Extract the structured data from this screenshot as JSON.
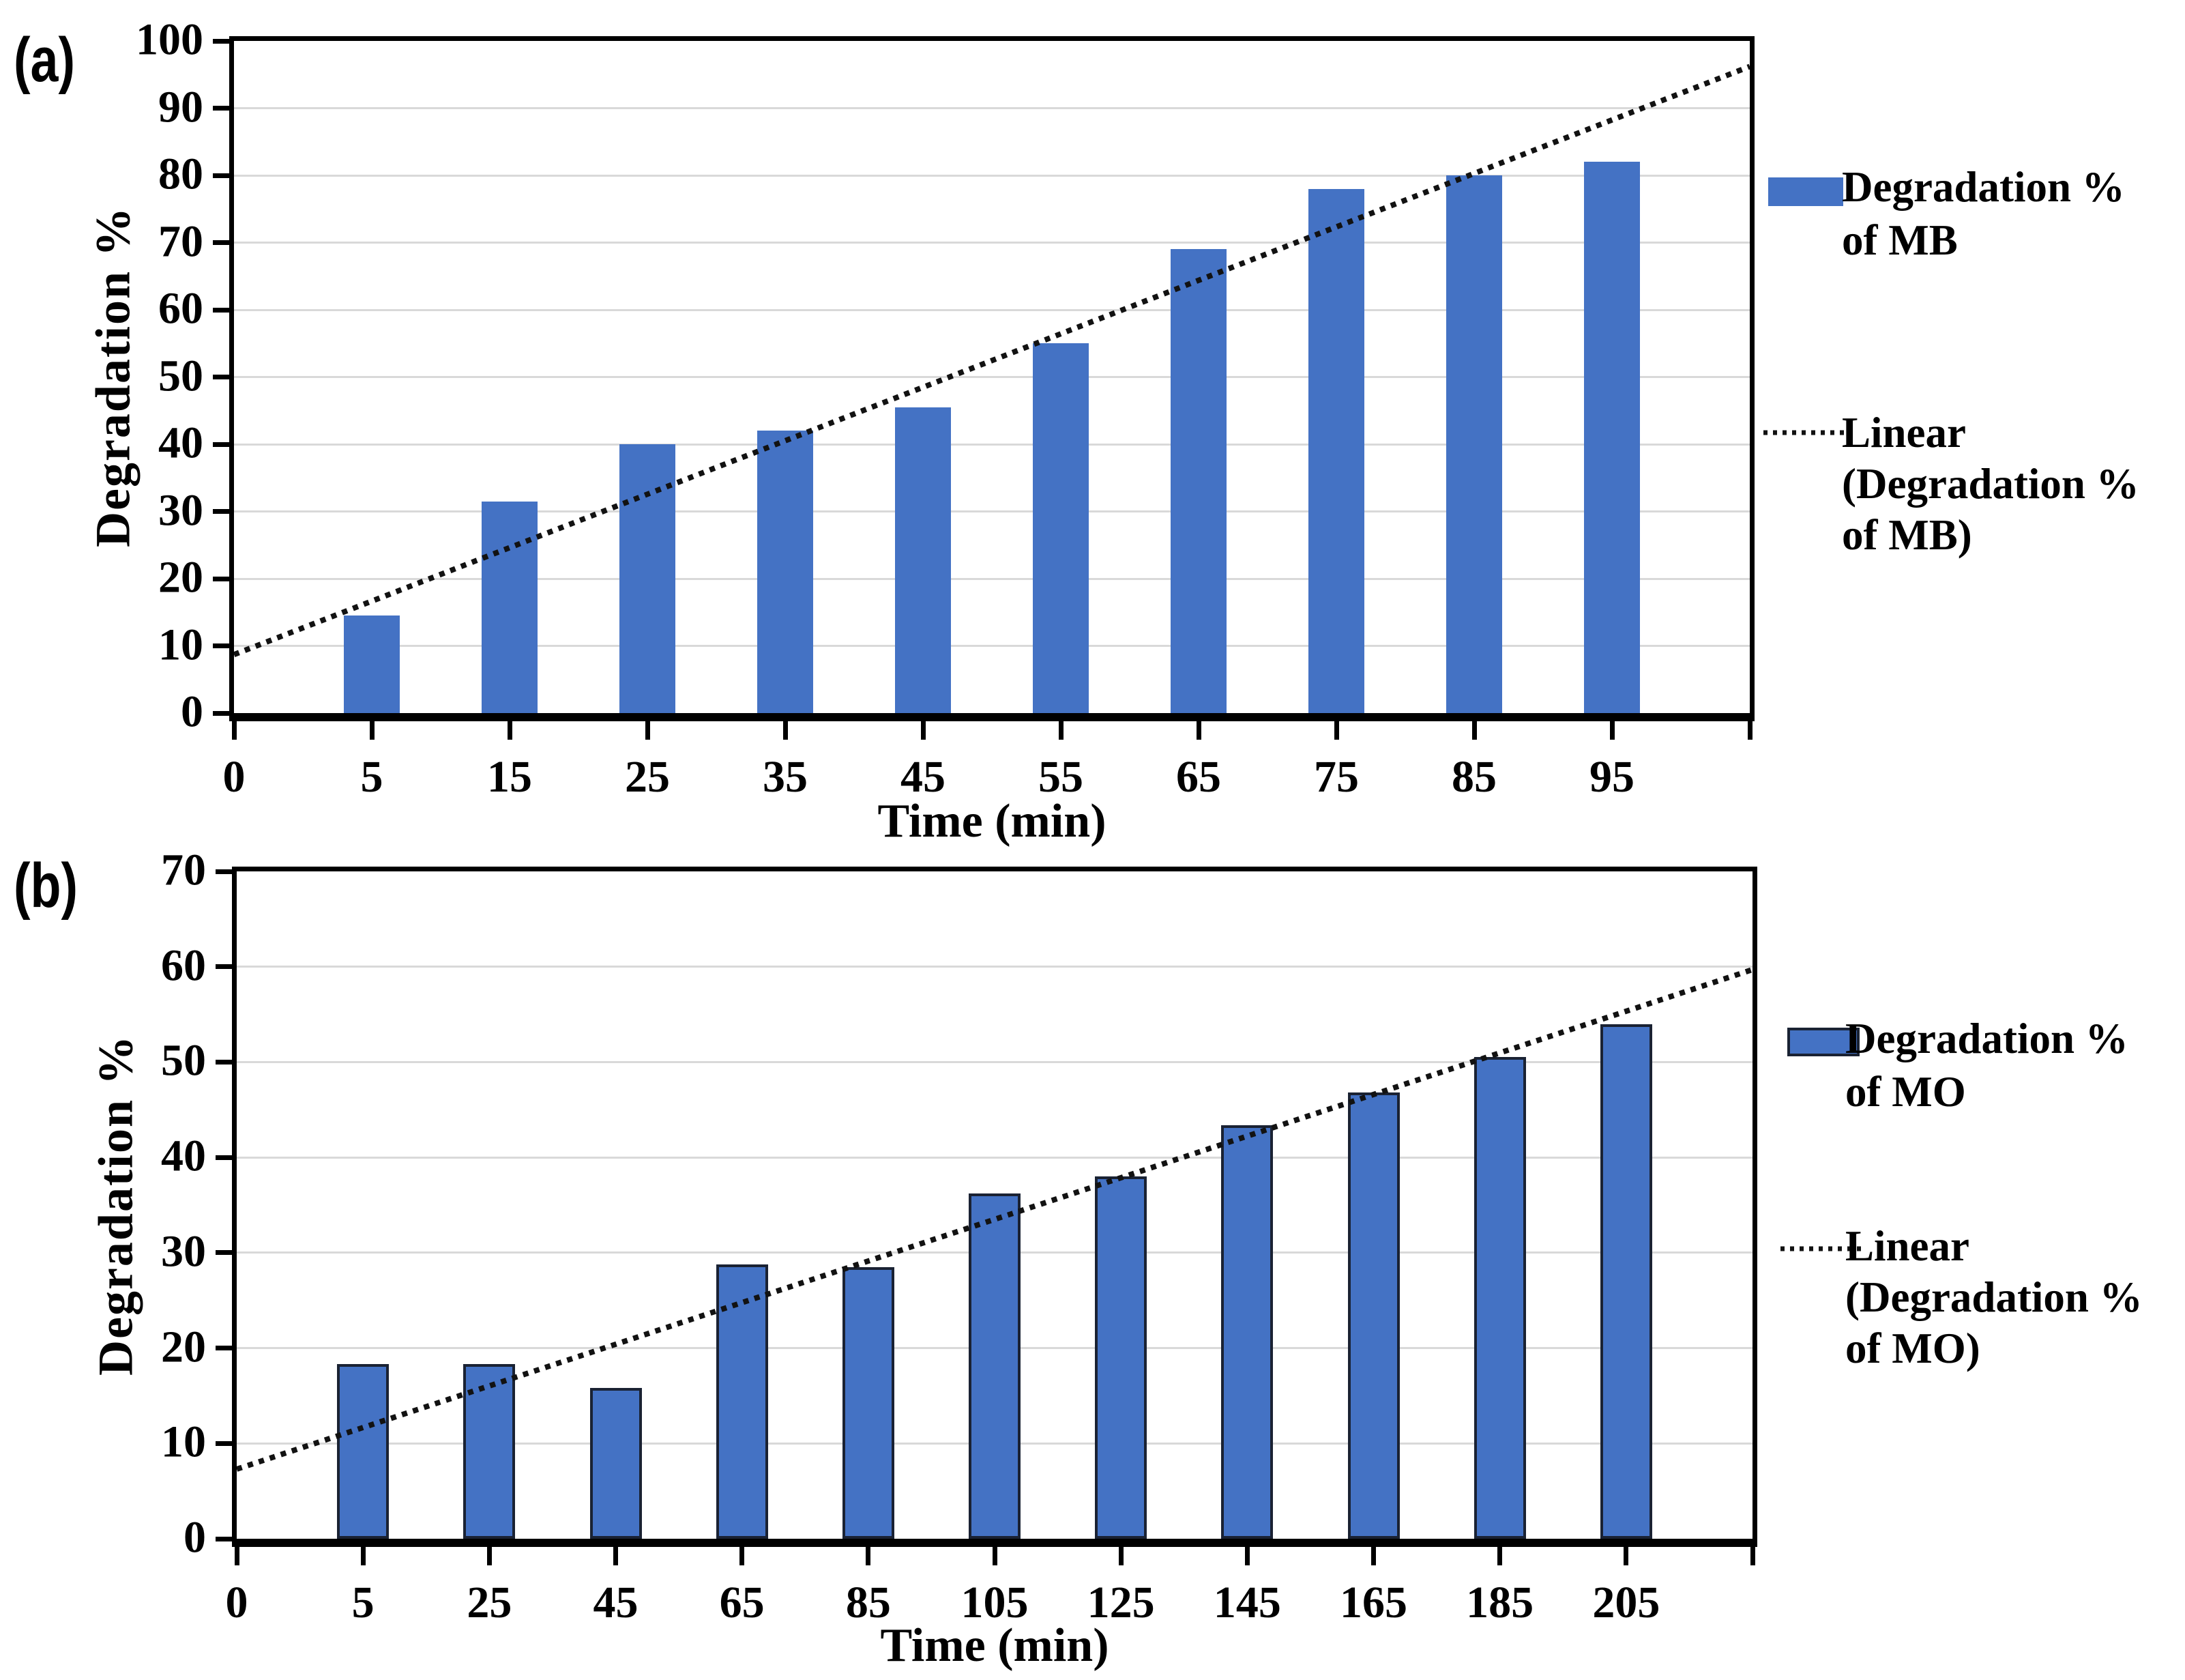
{
  "figure": {
    "panels": [
      {
        "id": "a",
        "label": "(a)"
      },
      {
        "id": "b",
        "label": "(b)"
      }
    ]
  },
  "chart_data": [
    {
      "type": "bar",
      "panel": "(a)",
      "categories": [
        "0",
        "5",
        "15",
        "25",
        "35",
        "45",
        "55",
        "65",
        "75",
        "85",
        "95"
      ],
      "values": [
        null,
        14.5,
        31.5,
        40,
        42,
        45.5,
        55,
        69,
        78,
        80,
        82
      ],
      "series_name": "Degradation % of MB",
      "xlabel": "Time (min)",
      "ylabel": "Degradation  %",
      "ylim": [
        0,
        100
      ],
      "yticks": [
        0,
        10,
        20,
        30,
        40,
        50,
        60,
        70,
        80,
        90,
        100
      ],
      "grid": true,
      "legend_position": "right",
      "bar_color": "#4472C4",
      "bar_border_color": null,
      "trendline": {
        "label": "Linear (Degradation % of MB)",
        "start_value": 8.7,
        "end_value": 96.2
      },
      "legend": [
        {
          "swatch": "bar",
          "lines": [
            "Degradation %",
            "of MB"
          ]
        },
        {
          "swatch": "dotted",
          "lines": [
            "Linear",
            "(Degradation %",
            "of MB)"
          ]
        }
      ]
    },
    {
      "type": "bar",
      "panel": "(b)",
      "categories": [
        "0",
        "5",
        "25",
        "45",
        "65",
        "85",
        "105",
        "125",
        "145",
        "165",
        "185",
        "205"
      ],
      "values": [
        null,
        18.3,
        18.3,
        15.8,
        28.8,
        28.5,
        36.2,
        38,
        43.4,
        46.8,
        50.5,
        54
      ],
      "series_name": "Degradation % of MO",
      "xlabel": "Time (min)",
      "ylabel": "Degradation  %",
      "ylim": [
        0,
        70
      ],
      "yticks": [
        0,
        10,
        20,
        30,
        40,
        50,
        60,
        70
      ],
      "grid": true,
      "legend_position": "right",
      "bar_color": "#4472C4",
      "bar_border_color": "#1a2233",
      "trendline": {
        "label": "Linear (Degradation % of MO)",
        "start_value": 7.3,
        "end_value": 59.7
      },
      "legend": [
        {
          "swatch": "bar",
          "lines": [
            "Degradation %",
            "of MO"
          ]
        },
        {
          "swatch": "dotted",
          "lines": [
            "Linear",
            "(Degradation %",
            "of MO)"
          ]
        }
      ]
    }
  ]
}
